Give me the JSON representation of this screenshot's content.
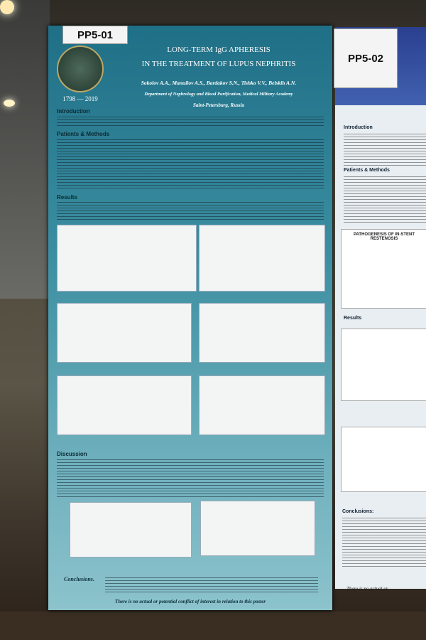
{
  "left_poster": {
    "id": "PP5-01",
    "title_line1": "LONG-TERM IgG APHERESIS",
    "title_line2": "IN THE TREATMENT OF LUPUS NEPHRITIS",
    "authors": "Sokolov A.A., Manuilov A.S., Bardakov S.N., Tishko V.V., Belskih A.N.",
    "department": "Department of Nephrology and Blood Purification, Medical Military Academy",
    "city": "Saint-Petersburg, Russia",
    "years": "1798 — 2019",
    "sections": [
      "Introduction",
      "Patients & Methods",
      "Results",
      "Discussion"
    ],
    "conclusions": "Conclusions.",
    "footer": "There is no actual or potential conflict of interest in relation to this poster"
  },
  "right_poster": {
    "id": "PP5-02",
    "sections": [
      "Introduction",
      "Patients & Methods",
      "Results"
    ],
    "figure_title": "PATHOGENESIS OF IN-STENT RESTENOSIS",
    "conclusions": "Conclusions:",
    "footer": "There is no actual or"
  }
}
